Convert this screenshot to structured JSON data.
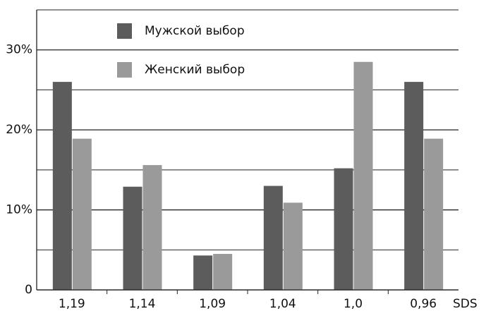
{
  "chart_data": {
    "type": "bar",
    "categories": [
      "1,19",
      "1,14",
      "1,09",
      "1,04",
      "1,0",
      "0,96"
    ],
    "x_label": "SDS",
    "series": [
      {
        "name": "Мужской выбор",
        "color": "#5c5c5c",
        "values": [
          26,
          12.9,
          4.3,
          13,
          15.2,
          26
        ]
      },
      {
        "name": "Женский выбор",
        "color": "#9a9a9a",
        "values": [
          18.9,
          15.6,
          4.5,
          10.9,
          28.5,
          18.9
        ]
      }
    ],
    "ylim": [
      0,
      35
    ],
    "yticks": [
      0,
      {
        "value": 10,
        "label": "10%"
      },
      {
        "value": 20,
        "label": "20%"
      },
      {
        "value": 30,
        "label": "30%"
      }
    ],
    "minor_grid": [
      5,
      15,
      25,
      35
    ],
    "grid": true
  }
}
